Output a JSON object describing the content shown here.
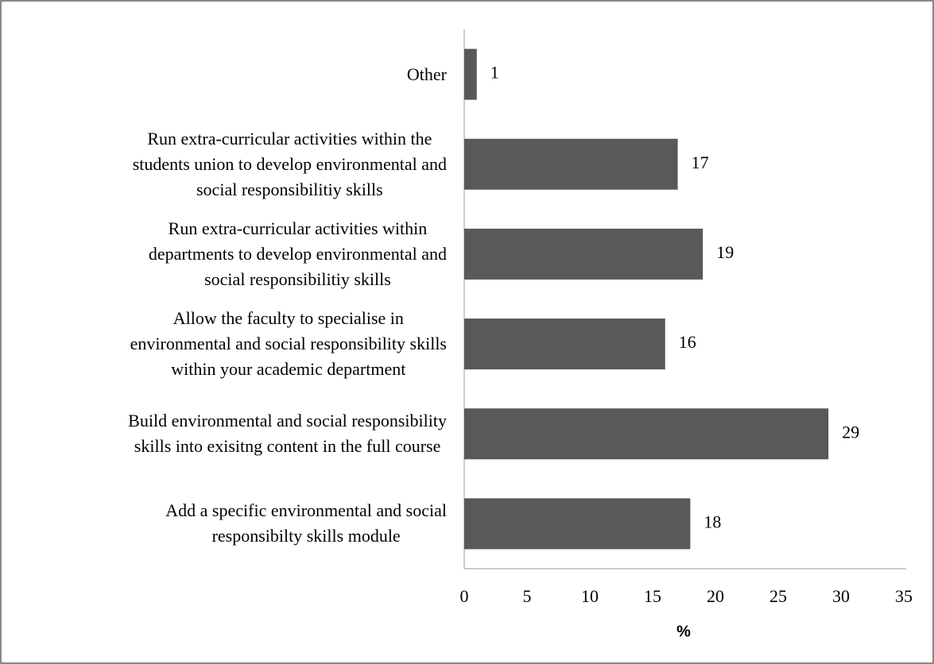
{
  "chart_data": {
    "type": "barh",
    "categories": [
      "Other",
      "Run extra-curricular activities within the\nstudents union to develop environmental and\nsocial responsibilitiy skills",
      "Run extra-curricular activities within\ndepartments to develop environmental and\nsocial responsibilitiy skills",
      "Allow the faculty to specialise in\nenvironmental and social responsibility skills\nwithin your academic department",
      "Build environmental and social responsibility\nskills into exisitng content in the full course",
      "Add a specific environmental and social\nresponsibilty skills module"
    ],
    "values": [
      1,
      17,
      19,
      16,
      29,
      18
    ],
    "color": "#595959",
    "xlabel": "%",
    "xlim": [
      0,
      35
    ],
    "xticks": [
      0,
      5,
      10,
      15,
      20,
      25,
      30,
      35
    ],
    "grid": false
  }
}
